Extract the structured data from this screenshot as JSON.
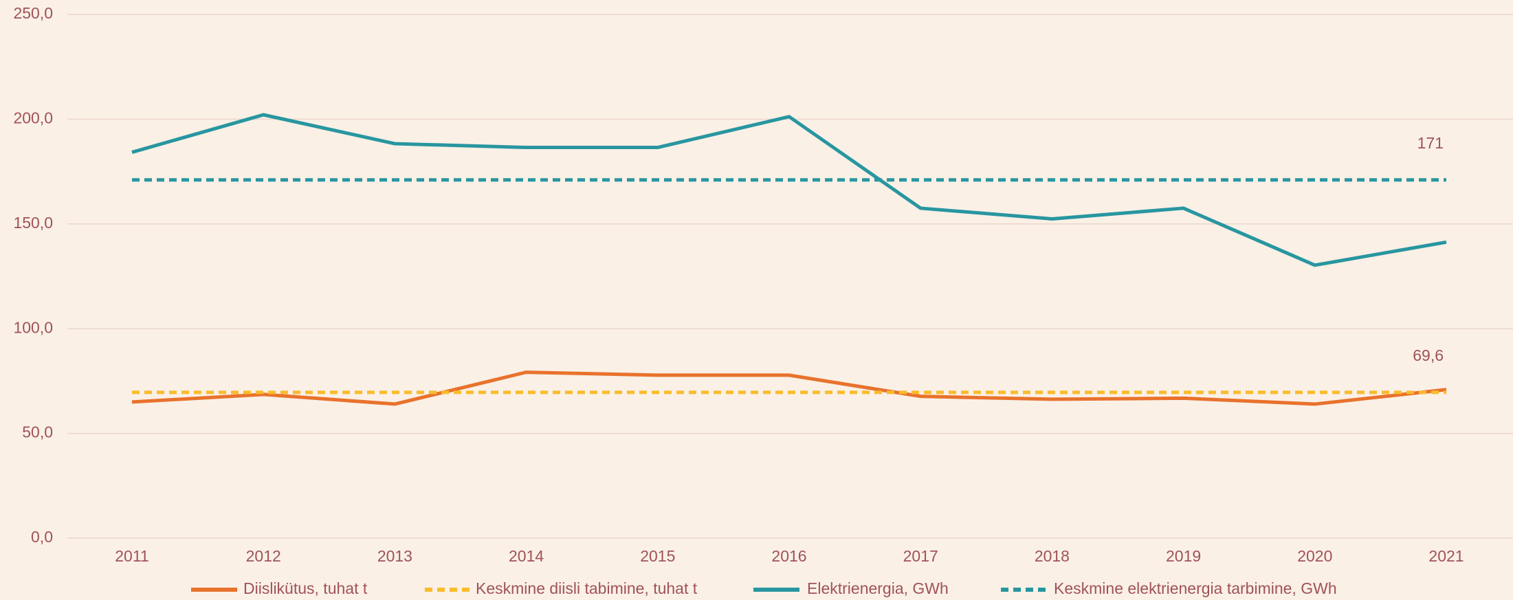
{
  "chart_data": {
    "type": "line",
    "categories": [
      "2011",
      "2012",
      "2013",
      "2014",
      "2015",
      "2016",
      "2017",
      "2018",
      "2019",
      "2020",
      "2021"
    ],
    "series": [
      {
        "name": "Diislikütus, tuhat t",
        "color": "#e8722c",
        "linestyle": "solid",
        "values": [
          65,
          68.6,
          64,
          79.2,
          77.8,
          77.8,
          67.7,
          66.3,
          66.8,
          64,
          70.9
        ]
      },
      {
        "name": "Keskmine diisli tabimine, tuhat t",
        "color": "#f9bc2c",
        "linestyle": "dashed",
        "values": [
          69.6,
          69.6,
          69.6,
          69.6,
          69.6,
          69.6,
          69.6,
          69.6,
          69.6,
          69.6,
          69.6
        ],
        "value_labels": [
          null,
          null,
          null,
          null,
          null,
          null,
          null,
          null,
          null,
          null,
          "69,6"
        ]
      },
      {
        "name": "Elektrienergia, GWh",
        "color": "#2896a0",
        "linestyle": "solid",
        "values": [
          184.2,
          202.1,
          188.3,
          186.5,
          186.5,
          201.2,
          157.5,
          152.4,
          157.5,
          130.3,
          141.3
        ]
      },
      {
        "name": "Keskmine elektrienergia tarbimine, GWh",
        "color": "#2896a0",
        "linestyle": "dashed",
        "values": [
          171,
          171,
          171,
          171,
          171,
          171,
          171,
          171,
          171,
          171,
          171
        ],
        "value_labels": [
          null,
          null,
          null,
          null,
          null,
          null,
          null,
          null,
          null,
          null,
          "171"
        ]
      }
    ],
    "ylim": [
      0,
      250
    ],
    "yticks": [
      {
        "value": 0,
        "label": "0,0"
      },
      {
        "value": 50,
        "label": "50,0"
      },
      {
        "value": 100,
        "label": "100,0"
      },
      {
        "value": 150,
        "label": "150,0"
      },
      {
        "value": 200,
        "label": "200,0"
      },
      {
        "value": 250,
        "label": "250,0"
      }
    ],
    "grid": true,
    "legend": "bottom"
  }
}
